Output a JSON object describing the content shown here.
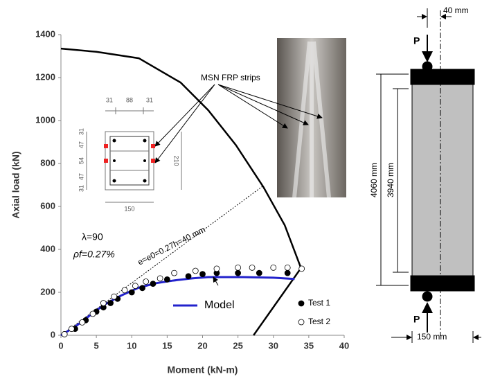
{
  "chart_data": {
    "type": "line",
    "x_label": "Moment (kN-m)",
    "y_label": "Axial load (kN)",
    "xlim": [
      0,
      40
    ],
    "xticks": [
      0,
      5,
      10,
      15,
      20,
      25,
      30,
      35,
      40
    ],
    "ylim": [
      0,
      1400
    ],
    "yticks": [
      0,
      200,
      400,
      600,
      800,
      1000,
      1200,
      1400
    ],
    "interaction_curve": {
      "color": "#000000",
      "x": [
        0,
        5,
        11,
        16.9,
        20.8,
        24.7,
        28.6,
        31.6,
        33.9,
        27.2
      ],
      "values": [
        1335,
        1320,
        1290,
        1177,
        1048,
        886,
        690,
        513,
        313,
        0
      ]
    },
    "eccentricity_line": {
      "x": [
        0,
        28.6
      ],
      "values": [
        0,
        697
      ]
    },
    "series": [
      {
        "name": "Model",
        "color": "#2222cc",
        "style": "line",
        "x": [
          0,
          2,
          4,
          6.1,
          8.5,
          11,
          13.5,
          15.9,
          18.5,
          20.8,
          25.7,
          30,
          33
        ],
        "values": [
          0,
          40,
          90,
          142,
          185,
          222,
          243,
          255,
          265,
          271,
          271,
          268,
          262
        ]
      },
      {
        "name": "Test 1",
        "color": "#000000",
        "style": "filled",
        "x": [
          0.5,
          2,
          3.5,
          5,
          6,
          7,
          8,
          10,
          11.5,
          13,
          15,
          18,
          20,
          22,
          25,
          28,
          32
        ],
        "values": [
          5,
          30,
          70,
          110,
          130,
          150,
          170,
          200,
          220,
          240,
          260,
          275,
          285,
          290,
          290,
          290,
          290
        ]
      },
      {
        "name": "Test 2",
        "color": "#000000",
        "style": "hollow",
        "x": [
          0.5,
          1.5,
          3,
          4.5,
          6,
          7.5,
          9,
          10.5,
          12,
          14,
          16,
          19,
          22,
          25,
          27,
          30,
          32,
          34
        ],
        "values": [
          5,
          30,
          60,
          100,
          150,
          180,
          210,
          230,
          250,
          265,
          290,
          300,
          310,
          315,
          315,
          315,
          315,
          310
        ]
      }
    ],
    "annotations": {
      "strips": "MSN FRP strips",
      "lambda": "λ=90",
      "rho": "ρf=0.27%",
      "ecc": "e=e0=0.27h=40 mm"
    }
  },
  "section": {
    "top": [
      "31",
      "88",
      "31"
    ],
    "left": [
      "31",
      "47",
      "54",
      "47",
      "31"
    ],
    "height": "210",
    "width": "150"
  },
  "column": {
    "offset": "40 mm",
    "load_top": "P",
    "load_bottom": "P",
    "length": "4060 mm",
    "clear": "3940 mm",
    "width": "150 mm"
  }
}
